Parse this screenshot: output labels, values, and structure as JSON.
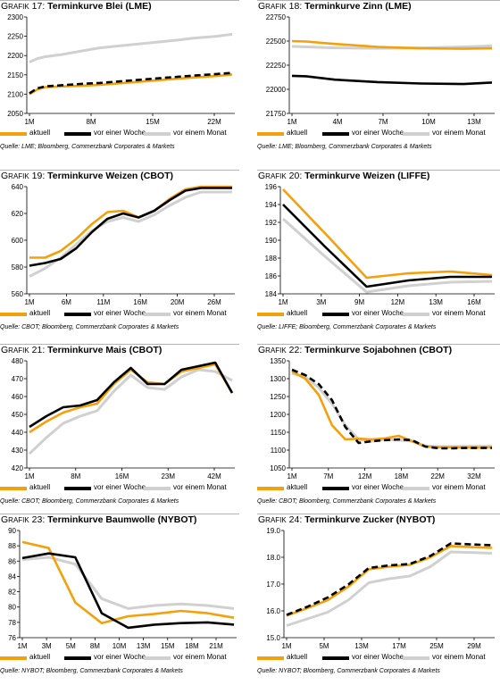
{
  "chart_data": [
    {
      "type": "line",
      "prefix": "G",
      "prefix_small": "RAFIK",
      "number": "17:",
      "title": "Terminkurve Blei (LME)",
      "x_labels": [
        "1M",
        "8M",
        "15M",
        "22M"
      ],
      "ylim": [
        2050,
        2300
      ],
      "y_ticks": [
        "2050",
        "2100",
        "2150",
        "2200",
        "2250",
        "2300"
      ],
      "series": [
        {
          "name": "aktuell",
          "x": [
            1,
            2,
            3,
            5,
            8,
            10,
            15,
            20,
            22,
            25,
            27
          ],
          "values": [
            2100,
            2112,
            2118,
            2120,
            2122,
            2124,
            2132,
            2140,
            2143,
            2147,
            2151
          ]
        },
        {
          "name": "vor einer Woche",
          "x": [
            1,
            2,
            3,
            5,
            8,
            10,
            15,
            20,
            22,
            25,
            27
          ],
          "values": [
            2102,
            2115,
            2120,
            2123,
            2127,
            2129,
            2137,
            2145,
            2148,
            2152,
            2155
          ]
        },
        {
          "name": "vor einem Monat",
          "x": [
            1,
            2,
            3,
            5,
            8,
            10,
            15,
            20,
            22,
            25,
            27
          ],
          "values": [
            2183,
            2192,
            2197,
            2202,
            2213,
            2220,
            2230,
            2240,
            2245,
            2250,
            2255
          ]
        }
      ],
      "source": "Quelle: LME; Bloomberg, Commerzbank Corporates & Markets"
    },
    {
      "type": "line",
      "prefix": "G",
      "prefix_small": "RAFIK",
      "number": "18:",
      "title": "Terminkurve Zinn (LME)",
      "x_labels": [
        "1M",
        "4M",
        "7M",
        "10M",
        "13M"
      ],
      "ylim": [
        21750,
        22750
      ],
      "y_ticks": [
        "21750",
        "22000",
        "22250",
        "22500",
        "22750"
      ],
      "series": [
        {
          "name": "aktuell",
          "x": [
            1,
            2,
            4,
            7,
            10,
            13,
            15
          ],
          "values": [
            22500,
            22495,
            22470,
            22440,
            22425,
            22420,
            22425
          ]
        },
        {
          "name": "vor einer Woche",
          "x": [
            1,
            2,
            4,
            7,
            10,
            13,
            15
          ],
          "values": [
            22140,
            22135,
            22100,
            22075,
            22060,
            22055,
            22070
          ]
        },
        {
          "name": "vor einem Monat",
          "x": [
            1,
            2,
            4,
            7,
            10,
            13,
            15
          ],
          "values": [
            22445,
            22440,
            22430,
            22425,
            22430,
            22440,
            22450
          ]
        }
      ],
      "source": "Quelle: LME; Bloomberg, Commerzbank Corporates & Markets"
    },
    {
      "type": "line",
      "prefix": "G",
      "prefix_small": "RAFIK",
      "number": "19:",
      "title": "Terminkurve Weizen (CBOT)",
      "x_labels": [
        "1M",
        "6M",
        "11M",
        "16M",
        "20M",
        "26M"
      ],
      "ylim": [
        560,
        640
      ],
      "y_ticks": [
        "560",
        "580",
        "600",
        "620",
        "640"
      ],
      "series": [
        {
          "name": "aktuell",
          "x": [
            1,
            3,
            5,
            7,
            9,
            11,
            13,
            15,
            17,
            19,
            21,
            23,
            25,
            27
          ],
          "values": [
            587,
            587,
            592,
            601,
            612,
            621,
            622,
            617,
            622,
            631,
            638,
            640,
            640,
            640
          ]
        },
        {
          "name": "vor einer Woche",
          "x": [
            1,
            3,
            5,
            7,
            9,
            11,
            13,
            15,
            17,
            19,
            21,
            23,
            25,
            27
          ],
          "values": [
            581,
            583,
            586,
            594,
            606,
            616,
            620,
            617,
            622,
            630,
            637,
            639,
            639,
            639
          ]
        },
        {
          "name": "vor einem Monat",
          "x": [
            1,
            3,
            5,
            7,
            9,
            11,
            13,
            15,
            17,
            19,
            21,
            23,
            25,
            27
          ],
          "values": [
            573,
            579,
            587,
            597,
            607,
            614,
            617,
            614,
            619,
            626,
            632,
            636,
            636,
            636
          ]
        }
      ],
      "source": "Quelle: CBOT; Bloomberg, Commerzbank Corporates & Markets"
    },
    {
      "type": "line",
      "prefix": "G",
      "prefix_small": "RAFIK",
      "number": "20:",
      "title": "Terminkurve Weizen (LIFFE)",
      "x_labels": [
        "1M",
        "3M",
        "9M",
        "12M",
        "13M",
        "16M"
      ],
      "ylim": [
        184,
        196
      ],
      "y_ticks": [
        "184",
        "186",
        "188",
        "190",
        "192",
        "194",
        "196"
      ],
      "series": [
        {
          "name": "aktuell",
          "x": [
            0,
            1,
            2,
            3,
            4,
            5
          ],
          "values": [
            195.7,
            190.8,
            185.8,
            186.3,
            186.5,
            186.1
          ]
        },
        {
          "name": "vor einer Woche",
          "x": [
            0,
            1,
            2,
            3,
            4,
            5
          ],
          "values": [
            194.0,
            189.3,
            184.8,
            185.5,
            185.9,
            185.9
          ]
        },
        {
          "name": "vor einem Monat",
          "x": [
            0,
            1,
            2,
            3,
            4,
            5
          ],
          "values": [
            192.4,
            188.2,
            184.2,
            184.9,
            185.3,
            185.4
          ]
        }
      ],
      "source": "Quelle: LIFFE; Bloomberg, Commerzbank Corporates & Markets"
    },
    {
      "type": "line",
      "prefix": "G",
      "prefix_small": "RAFIK",
      "number": "21:",
      "title": "Terminkurve Mais (CBOT)",
      "x_labels": [
        "1M",
        "8M",
        "16M",
        "23M",
        "42M"
      ],
      "ylim": [
        420,
        480
      ],
      "y_ticks": [
        "420",
        "430",
        "440",
        "450",
        "460",
        "470",
        "480"
      ],
      "series": [
        {
          "name": "aktuell",
          "x": [
            0,
            1,
            2,
            3,
            4,
            5,
            6,
            7,
            8,
            9,
            10,
            11,
            12
          ],
          "values": [
            440,
            446,
            451,
            454,
            456,
            467,
            475,
            468,
            467,
            474,
            476,
            478,
            462
          ]
        },
        {
          "name": "vor einer Woche",
          "x": [
            0,
            1,
            2,
            3,
            4,
            5,
            6,
            7,
            8,
            9,
            10,
            11,
            12
          ],
          "values": [
            443,
            449,
            454,
            455,
            458,
            468,
            476,
            467,
            467,
            475,
            477,
            479,
            462
          ]
        },
        {
          "name": "vor einem Monat",
          "x": [
            0,
            1,
            2,
            3,
            4,
            5,
            6,
            7,
            8,
            9,
            10,
            11,
            12
          ],
          "values": [
            428,
            437,
            445,
            449,
            452,
            463,
            472,
            465,
            464,
            471,
            475,
            474,
            469
          ]
        }
      ],
      "source": "Quelle: CBOT; Bloomberg, Commerzbank Corporates & Markets"
    },
    {
      "type": "line",
      "prefix": "G",
      "prefix_small": "RAFIK",
      "number": "22:",
      "title": "Terminkurve Sojabohnen (CBOT)",
      "x_labels": [
        "1M",
        "7M",
        "12M",
        "18M",
        "22M",
        "32M"
      ],
      "ylim": [
        1050,
        1350
      ],
      "y_ticks": [
        "1050",
        "1100",
        "1150",
        "1200",
        "1250",
        "1300",
        "1350"
      ],
      "series": [
        {
          "name": "aktuell",
          "x": [
            0,
            1,
            2,
            3,
            4,
            5,
            6,
            7,
            8,
            9,
            10,
            11,
            12,
            13,
            14,
            15
          ],
          "values": [
            1320,
            1300,
            1255,
            1170,
            1130,
            1132,
            1130,
            1133,
            1140,
            1125,
            1110,
            1108,
            1108,
            1107,
            1107,
            1108
          ]
        },
        {
          "name": "vor einer Woche",
          "x": [
            0,
            1,
            2,
            3,
            4,
            5,
            6,
            7,
            8,
            9,
            10,
            11,
            12,
            13,
            14,
            15
          ],
          "values": [
            1325,
            1310,
            1285,
            1240,
            1165,
            1120,
            1125,
            1128,
            1130,
            1128,
            1110,
            1105,
            1105,
            1106,
            1106,
            1106
          ]
        },
        {
          "name": "vor einem Monat",
          "x": [
            0,
            1,
            2,
            3,
            4,
            5,
            6,
            7,
            8,
            9,
            10,
            11,
            12,
            13,
            14,
            15
          ],
          "values": [
            1315,
            1305,
            1275,
            1230,
            1170,
            1130,
            1125,
            1130,
            1128,
            1125,
            1112,
            1110,
            1110,
            1111,
            1111,
            1111
          ]
        }
      ],
      "source": "Quelle: CBOT; Bloomberg, Commerzbank Corporates & Markets"
    },
    {
      "type": "line",
      "prefix": "G",
      "prefix_small": "RAFIK",
      "number": "23:",
      "title": "Terminkurve Baumwolle (NYBOT)",
      "x_labels": [
        "1M",
        "3M",
        "5M",
        "8M",
        "10M",
        "13M",
        "15M",
        "18M",
        "21M"
      ],
      "ylim": [
        76,
        90
      ],
      "y_ticks": [
        "76",
        "78",
        "80",
        "82",
        "84",
        "86",
        "88",
        "90"
      ],
      "series": [
        {
          "name": "aktuell",
          "x": [
            0,
            1,
            2,
            3,
            4,
            5,
            6,
            7,
            8
          ],
          "values": [
            88.5,
            87.7,
            80.6,
            77.9,
            78.8,
            79.1,
            79.5,
            79.2,
            78.6
          ]
        },
        {
          "name": "vor einer Woche",
          "x": [
            0,
            1,
            2,
            3,
            4,
            5,
            6,
            7,
            8
          ],
          "values": [
            86.4,
            87.0,
            86.5,
            79.2,
            77.3,
            77.7,
            77.9,
            78.0,
            77.7
          ]
        },
        {
          "name": "vor einem Monat",
          "x": [
            0,
            1,
            2,
            3,
            4,
            5,
            6,
            7,
            8
          ],
          "values": [
            86.2,
            86.5,
            85.6,
            81.1,
            79.8,
            80.2,
            80.4,
            80.2,
            79.8
          ]
        }
      ],
      "source": "Quelle: NYBOT; Bloomberg, Commerzbank Corporates & Markets"
    },
    {
      "type": "line",
      "prefix": "G",
      "prefix_small": "RAFIK",
      "number": "24:",
      "title": "Terminkurve Zucker (NYBOT)",
      "x_labels": [
        "1M",
        "5M",
        "13M",
        "17M",
        "25M",
        "29M"
      ],
      "ylim": [
        15.0,
        19.0
      ],
      "y_ticks": [
        "15.0",
        "16.0",
        "17.0",
        "18.0",
        "19.0"
      ],
      "series": [
        {
          "name": "aktuell",
          "x": [
            0,
            1,
            2,
            3,
            4,
            5,
            6,
            7,
            8,
            9,
            10
          ],
          "values": [
            15.82,
            16.1,
            16.4,
            16.9,
            17.55,
            17.65,
            17.72,
            18.0,
            18.42,
            18.38,
            18.35
          ]
        },
        {
          "name": "vor einer Woche",
          "x": [
            0,
            1,
            2,
            3,
            4,
            5,
            6,
            7,
            8,
            9,
            10
          ],
          "values": [
            15.85,
            16.15,
            16.5,
            16.98,
            17.6,
            17.7,
            17.75,
            18.05,
            18.52,
            18.48,
            18.45
          ]
        },
        {
          "name": "vor einem Monat",
          "x": [
            0,
            1,
            2,
            3,
            4,
            5,
            6,
            7,
            8,
            9,
            10
          ],
          "values": [
            15.45,
            15.7,
            15.95,
            16.4,
            17.05,
            17.2,
            17.3,
            17.65,
            18.2,
            18.18,
            18.15
          ]
        }
      ],
      "source": "Quelle: NYBOT; Bloomberg, Commerzbank Corporates & Markets"
    }
  ],
  "colors": {
    "aktuell": "#f5a00b",
    "vor einer Woche": "#000000",
    "vor einem Monat": "#d0d0d0"
  }
}
